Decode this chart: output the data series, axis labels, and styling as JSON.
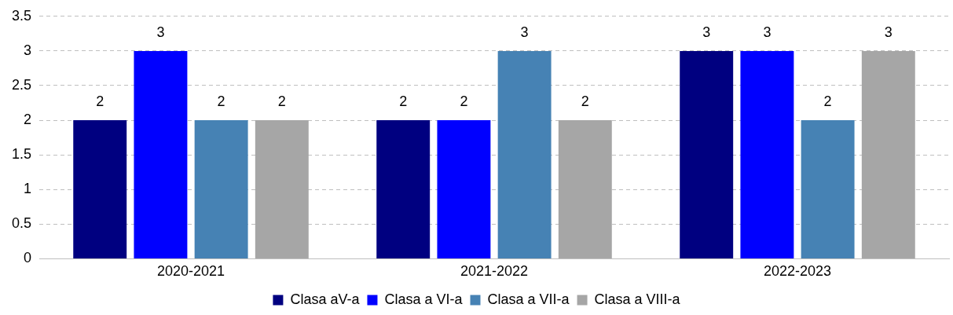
{
  "chart_data": {
    "type": "bar",
    "categories": [
      "2020-2021",
      "2021-2022",
      "2022-2023"
    ],
    "series": [
      {
        "name": "Clasa aV-a",
        "color": "#000080",
        "values": [
          2,
          2,
          3
        ]
      },
      {
        "name": "Clasa a VI-a",
        "color": "#0000ff",
        "values": [
          3,
          2,
          3
        ]
      },
      {
        "name": "Clasa a VII-a",
        "color": "#4682b4",
        "values": [
          2,
          3,
          2
        ]
      },
      {
        "name": "Clasa a VIII-a",
        "color": "#a6a6a6",
        "values": [
          2,
          2,
          3
        ]
      }
    ],
    "ylim": [
      0,
      3.5
    ],
    "yticks": [
      0,
      0.5,
      1,
      1.5,
      2,
      2.5,
      3,
      3.5
    ],
    "grid": "y",
    "legend": "bottom",
    "data_labels": true
  }
}
